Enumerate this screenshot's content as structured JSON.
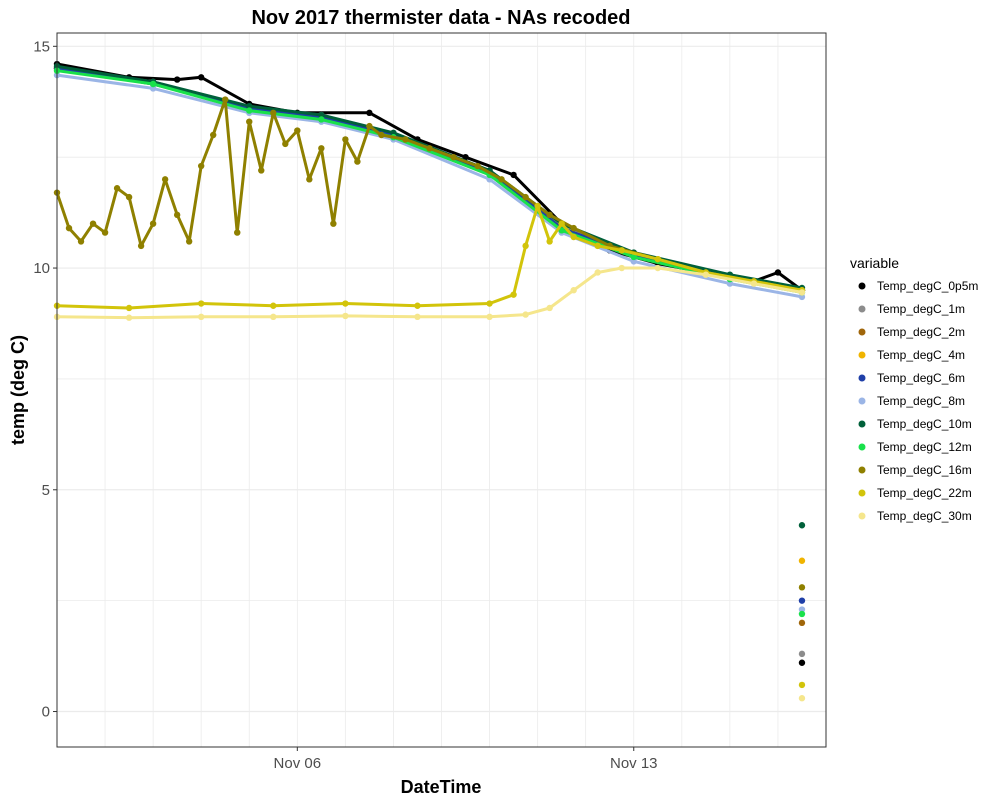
{
  "chart_data": {
    "type": "scatter",
    "title": "Nov 2017 thermister data - NAs recoded",
    "xlabel": "DateTime",
    "ylabel": "temp (deg C)",
    "x_ticks": [
      {
        "value": "2017-11-06",
        "label": "Nov 06"
      },
      {
        "value": "2017-11-13",
        "label": "Nov 13"
      }
    ],
    "xlim": [
      "2017-11-01T00:00",
      "2017-11-17T00:00"
    ],
    "x_range_data": [
      "2017-11-01T00:00",
      "2017-11-16T12:00"
    ],
    "y_ticks": [
      0,
      5,
      10,
      15
    ],
    "ylim": [
      -0.8,
      15.3
    ],
    "grid": true,
    "legend": {
      "title": "variable",
      "position": "right"
    },
    "series": [
      {
        "name": "Temp_degC_0p5m",
        "color": "#000000",
        "points": [
          [
            "2017-11-01T00:00",
            14.6
          ],
          [
            "2017-11-02T12:00",
            14.3
          ],
          [
            "2017-11-03T12:00",
            14.25
          ],
          [
            "2017-11-04T00:00",
            14.3
          ],
          [
            "2017-11-05T00:00",
            13.7
          ],
          [
            "2017-11-06T00:00",
            13.5
          ],
          [
            "2017-11-07T12:00",
            13.5
          ],
          [
            "2017-11-08T12:00",
            12.9
          ],
          [
            "2017-11-09T12:00",
            12.5
          ],
          [
            "2017-11-10T12:00",
            12.1
          ],
          [
            "2017-11-11T12:00",
            11.0
          ],
          [
            "2017-11-12T12:00",
            10.4
          ],
          [
            "2017-11-13T12:00",
            10.1
          ],
          [
            "2017-11-14T12:00",
            9.9
          ],
          [
            "2017-11-15T12:00",
            9.7
          ],
          [
            "2017-11-16T00:00",
            9.9
          ],
          [
            "2017-11-16T12:00",
            9.5
          ],
          [
            "2017-11-16T12:00",
            1.1
          ]
        ]
      },
      {
        "name": "Temp_degC_1m",
        "color": "#8c8c8c",
        "points": [
          [
            "2017-11-01T00:00",
            14.5
          ],
          [
            "2017-11-03T00:00",
            14.2
          ],
          [
            "2017-11-05T00:00",
            13.6
          ],
          [
            "2017-11-06T12:00",
            13.45
          ],
          [
            "2017-11-08T00:00",
            13.0
          ],
          [
            "2017-11-10T00:00",
            12.2
          ],
          [
            "2017-11-11T12:00",
            10.95
          ],
          [
            "2017-11-13T00:00",
            10.3
          ],
          [
            "2017-11-15T00:00",
            9.8
          ],
          [
            "2017-11-16T12:00",
            9.5
          ],
          [
            "2017-11-16T12:00",
            1.3
          ]
        ]
      },
      {
        "name": "Temp_degC_2m",
        "color": "#a0660a",
        "points": [
          [
            "2017-11-01T00:00",
            14.5
          ],
          [
            "2017-11-03T00:00",
            14.15
          ],
          [
            "2017-11-05T00:00",
            13.6
          ],
          [
            "2017-11-06T12:00",
            13.4
          ],
          [
            "2017-11-08T00:00",
            13.0
          ],
          [
            "2017-11-10T00:00",
            12.15
          ],
          [
            "2017-11-11T12:00",
            10.9
          ],
          [
            "2017-11-13T00:00",
            10.3
          ],
          [
            "2017-11-15T00:00",
            9.8
          ],
          [
            "2017-11-16T12:00",
            9.5
          ],
          [
            "2017-11-16T12:00",
            2.0
          ]
        ]
      },
      {
        "name": "Temp_degC_4m",
        "color": "#f0b400",
        "points": [
          [
            "2017-11-01T00:00",
            14.5
          ],
          [
            "2017-11-03T00:00",
            14.15
          ],
          [
            "2017-11-05T00:00",
            13.6
          ],
          [
            "2017-11-06T12:00",
            13.4
          ],
          [
            "2017-11-08T00:00",
            13.0
          ],
          [
            "2017-11-10T00:00",
            12.15
          ],
          [
            "2017-11-11T12:00",
            10.9
          ],
          [
            "2017-11-13T00:00",
            10.3
          ],
          [
            "2017-11-15T00:00",
            9.8
          ],
          [
            "2017-11-16T12:00",
            9.5
          ],
          [
            "2017-11-16T12:00",
            3.4
          ]
        ]
      },
      {
        "name": "Temp_degC_6m",
        "color": "#1f3fa8",
        "points": [
          [
            "2017-11-01T00:00",
            14.5
          ],
          [
            "2017-11-03T00:00",
            14.15
          ],
          [
            "2017-11-05T00:00",
            13.6
          ],
          [
            "2017-11-06T12:00",
            13.4
          ],
          [
            "2017-11-08T00:00",
            13.0
          ],
          [
            "2017-11-10T00:00",
            12.15
          ],
          [
            "2017-11-11T12:00",
            10.9
          ],
          [
            "2017-11-13T00:00",
            10.3
          ],
          [
            "2017-11-15T00:00",
            9.8
          ],
          [
            "2017-11-16T12:00",
            9.5
          ],
          [
            "2017-11-16T12:00",
            2.5
          ]
        ]
      },
      {
        "name": "Temp_degC_8m",
        "color": "#9bb5e6",
        "points": [
          [
            "2017-11-01T00:00",
            14.35
          ],
          [
            "2017-11-03T00:00",
            14.05
          ],
          [
            "2017-11-05T00:00",
            13.5
          ],
          [
            "2017-11-06T12:00",
            13.3
          ],
          [
            "2017-11-08T00:00",
            12.9
          ],
          [
            "2017-11-10T00:00",
            12.0
          ],
          [
            "2017-11-11T12:00",
            10.8
          ],
          [
            "2017-11-13T00:00",
            10.15
          ],
          [
            "2017-11-15T00:00",
            9.65
          ],
          [
            "2017-11-16T12:00",
            9.35
          ],
          [
            "2017-11-16T12:00",
            2.3
          ]
        ]
      },
      {
        "name": "Temp_degC_10m",
        "color": "#00603a",
        "points": [
          [
            "2017-11-01T00:00",
            14.55
          ],
          [
            "2017-11-03T00:00",
            14.2
          ],
          [
            "2017-11-05T00:00",
            13.65
          ],
          [
            "2017-11-06T12:00",
            13.45
          ],
          [
            "2017-11-08T00:00",
            13.05
          ],
          [
            "2017-11-10T00:00",
            12.2
          ],
          [
            "2017-11-11T12:00",
            11.0
          ],
          [
            "2017-11-13T00:00",
            10.35
          ],
          [
            "2017-11-15T00:00",
            9.85
          ],
          [
            "2017-11-16T12:00",
            9.55
          ],
          [
            "2017-11-16T12:00",
            4.2
          ]
        ]
      },
      {
        "name": "Temp_degC_12m",
        "color": "#19e14b",
        "points": [
          [
            "2017-11-01T00:00",
            14.45
          ],
          [
            "2017-11-03T00:00",
            14.15
          ],
          [
            "2017-11-05T00:00",
            13.55
          ],
          [
            "2017-11-06T12:00",
            13.35
          ],
          [
            "2017-11-08T00:00",
            12.95
          ],
          [
            "2017-11-10T00:00",
            12.1
          ],
          [
            "2017-11-11T12:00",
            10.85
          ],
          [
            "2017-11-13T00:00",
            10.25
          ],
          [
            "2017-11-15T00:00",
            9.75
          ],
          [
            "2017-11-16T12:00",
            9.45
          ],
          [
            "2017-11-16T12:00",
            2.2
          ]
        ]
      },
      {
        "name": "Temp_degC_16m",
        "color": "#8f8000",
        "points": [
          [
            "2017-11-01T00:00",
            11.7
          ],
          [
            "2017-11-01T06:00",
            10.9
          ],
          [
            "2017-11-01T12:00",
            10.6
          ],
          [
            "2017-11-01T18:00",
            11.0
          ],
          [
            "2017-11-02T00:00",
            10.8
          ],
          [
            "2017-11-02T06:00",
            11.8
          ],
          [
            "2017-11-02T12:00",
            11.6
          ],
          [
            "2017-11-02T18:00",
            10.5
          ],
          [
            "2017-11-03T00:00",
            11.0
          ],
          [
            "2017-11-03T06:00",
            12.0
          ],
          [
            "2017-11-03T12:00",
            11.2
          ],
          [
            "2017-11-03T18:00",
            10.6
          ],
          [
            "2017-11-04T00:00",
            12.3
          ],
          [
            "2017-11-04T06:00",
            13.0
          ],
          [
            "2017-11-04T12:00",
            13.8
          ],
          [
            "2017-11-04T18:00",
            10.8
          ],
          [
            "2017-11-05T00:00",
            13.3
          ],
          [
            "2017-11-05T06:00",
            12.2
          ],
          [
            "2017-11-05T12:00",
            13.5
          ],
          [
            "2017-11-05T18:00",
            12.8
          ],
          [
            "2017-11-06T00:00",
            13.1
          ],
          [
            "2017-11-06T06:00",
            12.0
          ],
          [
            "2017-11-06T12:00",
            12.7
          ],
          [
            "2017-11-06T18:00",
            11.0
          ],
          [
            "2017-11-07T00:00",
            12.9
          ],
          [
            "2017-11-07T06:00",
            12.4
          ],
          [
            "2017-11-07T12:00",
            13.2
          ],
          [
            "2017-11-07T18:00",
            13.0
          ],
          [
            "2017-11-08T06:00",
            12.9
          ],
          [
            "2017-11-08T18:00",
            12.7
          ],
          [
            "2017-11-09T06:00",
            12.5
          ],
          [
            "2017-11-09T18:00",
            12.3
          ],
          [
            "2017-11-10T06:00",
            12.0
          ],
          [
            "2017-11-10T18:00",
            11.6
          ],
          [
            "2017-11-11T06:00",
            11.2
          ],
          [
            "2017-11-11T18:00",
            10.9
          ],
          [
            "2017-11-12T12:00",
            10.5
          ],
          [
            "2017-11-13T12:00",
            10.2
          ],
          [
            "2017-11-14T12:00",
            9.9
          ],
          [
            "2017-11-15T12:00",
            9.7
          ],
          [
            "2017-11-16T12:00",
            9.5
          ],
          [
            "2017-11-16T12:00",
            2.8
          ]
        ]
      },
      {
        "name": "Temp_degC_22m",
        "color": "#d2c40a",
        "points": [
          [
            "2017-11-01T00:00",
            9.15
          ],
          [
            "2017-11-02T12:00",
            9.1
          ],
          [
            "2017-11-04T00:00",
            9.2
          ],
          [
            "2017-11-05T12:00",
            9.15
          ],
          [
            "2017-11-07T00:00",
            9.2
          ],
          [
            "2017-11-08T12:00",
            9.15
          ],
          [
            "2017-11-10T00:00",
            9.2
          ],
          [
            "2017-11-10T12:00",
            9.4
          ],
          [
            "2017-11-10T18:00",
            10.5
          ],
          [
            "2017-11-11T00:00",
            11.4
          ],
          [
            "2017-11-11T06:00",
            10.6
          ],
          [
            "2017-11-11T12:00",
            11.0
          ],
          [
            "2017-11-11T18:00",
            10.7
          ],
          [
            "2017-11-12T06:00",
            10.5
          ],
          [
            "2017-11-12T18:00",
            10.4
          ],
          [
            "2017-11-13T12:00",
            10.2
          ],
          [
            "2017-11-14T12:00",
            9.9
          ],
          [
            "2017-11-15T12:00",
            9.7
          ],
          [
            "2017-11-16T12:00",
            9.5
          ],
          [
            "2017-11-16T12:00",
            0.6
          ]
        ]
      },
      {
        "name": "Temp_degC_30m",
        "color": "#f5e68c",
        "points": [
          [
            "2017-11-01T00:00",
            8.9
          ],
          [
            "2017-11-02T12:00",
            8.88
          ],
          [
            "2017-11-04T00:00",
            8.9
          ],
          [
            "2017-11-05T12:00",
            8.9
          ],
          [
            "2017-11-07T00:00",
            8.92
          ],
          [
            "2017-11-08T12:00",
            8.9
          ],
          [
            "2017-11-10T00:00",
            8.9
          ],
          [
            "2017-11-10T18:00",
            8.95
          ],
          [
            "2017-11-11T06:00",
            9.1
          ],
          [
            "2017-11-11T18:00",
            9.5
          ],
          [
            "2017-11-12T06:00",
            9.9
          ],
          [
            "2017-11-12T18:00",
            10.0
          ],
          [
            "2017-11-13T12:00",
            10.0
          ],
          [
            "2017-11-14T12:00",
            9.85
          ],
          [
            "2017-11-15T12:00",
            9.65
          ],
          [
            "2017-11-16T12:00",
            9.45
          ],
          [
            "2017-11-16T12:00",
            0.3
          ]
        ]
      }
    ]
  }
}
